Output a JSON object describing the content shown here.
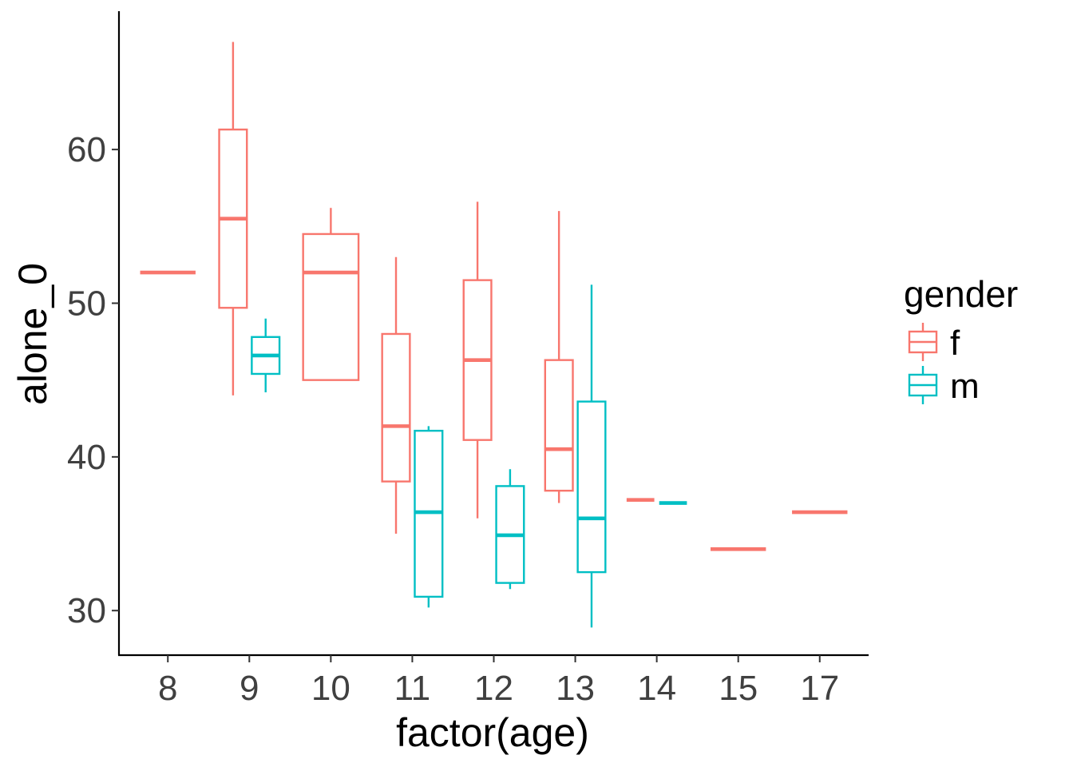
{
  "chart_data": {
    "type": "boxplot",
    "xlabel": "factor(age)",
    "ylabel": "alone_0",
    "ylim": [
      27.1,
      69.0
    ],
    "yticks": [
      30,
      40,
      50,
      60
    ],
    "categories": [
      "8",
      "9",
      "10",
      "11",
      "12",
      "13",
      "14",
      "15",
      "17"
    ],
    "grid": false,
    "legend": {
      "title": "gender",
      "placement": "right",
      "entries": [
        {
          "key": "f",
          "label": "f",
          "color": "#F8766D"
        },
        {
          "key": "m",
          "label": "m",
          "color": "#00BFC4"
        }
      ]
    },
    "series": [
      {
        "name": "f",
        "color": "#F8766D",
        "boxes": [
          {
            "category": "8",
            "min": 52.0,
            "q1": 52.0,
            "median": 52.0,
            "q3": 52.0,
            "max": 52.0
          },
          {
            "category": "9",
            "min": 44.0,
            "q1": 49.7,
            "median": 55.5,
            "q3": 61.3,
            "max": 67.0
          },
          {
            "category": "10",
            "min": 45.0,
            "q1": 45.0,
            "median": 52.0,
            "q3": 54.5,
            "max": 56.2
          },
          {
            "category": "11",
            "min": 35.0,
            "q1": 38.4,
            "median": 42.0,
            "q3": 48.0,
            "max": 53.0
          },
          {
            "category": "12",
            "min": 36.0,
            "q1": 41.1,
            "median": 46.3,
            "q3": 51.5,
            "max": 56.6
          },
          {
            "category": "13",
            "min": 37.0,
            "q1": 37.8,
            "median": 40.5,
            "q3": 46.3,
            "max": 56.0
          },
          {
            "category": "14",
            "min": 37.2,
            "q1": 37.2,
            "median": 37.2,
            "q3": 37.2,
            "max": 37.2
          },
          {
            "category": "15",
            "min": 34.0,
            "q1": 34.0,
            "median": 34.0,
            "q3": 34.0,
            "max": 34.0
          },
          {
            "category": "17",
            "min": 36.4,
            "q1": 36.4,
            "median": 36.4,
            "q3": 36.4,
            "max": 36.4
          }
        ]
      },
      {
        "name": "m",
        "color": "#00BFC4",
        "boxes": [
          {
            "category": "9",
            "min": 44.2,
            "q1": 45.4,
            "median": 46.6,
            "q3": 47.8,
            "max": 49.0
          },
          {
            "category": "11",
            "min": 30.2,
            "q1": 30.9,
            "median": 36.4,
            "q3": 41.7,
            "max": 42.0
          },
          {
            "category": "12",
            "min": 31.4,
            "q1": 31.8,
            "median": 34.9,
            "q3": 38.1,
            "max": 39.2
          },
          {
            "category": "13",
            "min": 28.9,
            "q1": 32.5,
            "median": 36.0,
            "q3": 43.6,
            "max": 51.2
          },
          {
            "category": "14",
            "min": 37.0,
            "q1": 37.0,
            "median": 37.0,
            "q3": 37.0,
            "max": 37.0
          }
        ]
      }
    ]
  }
}
